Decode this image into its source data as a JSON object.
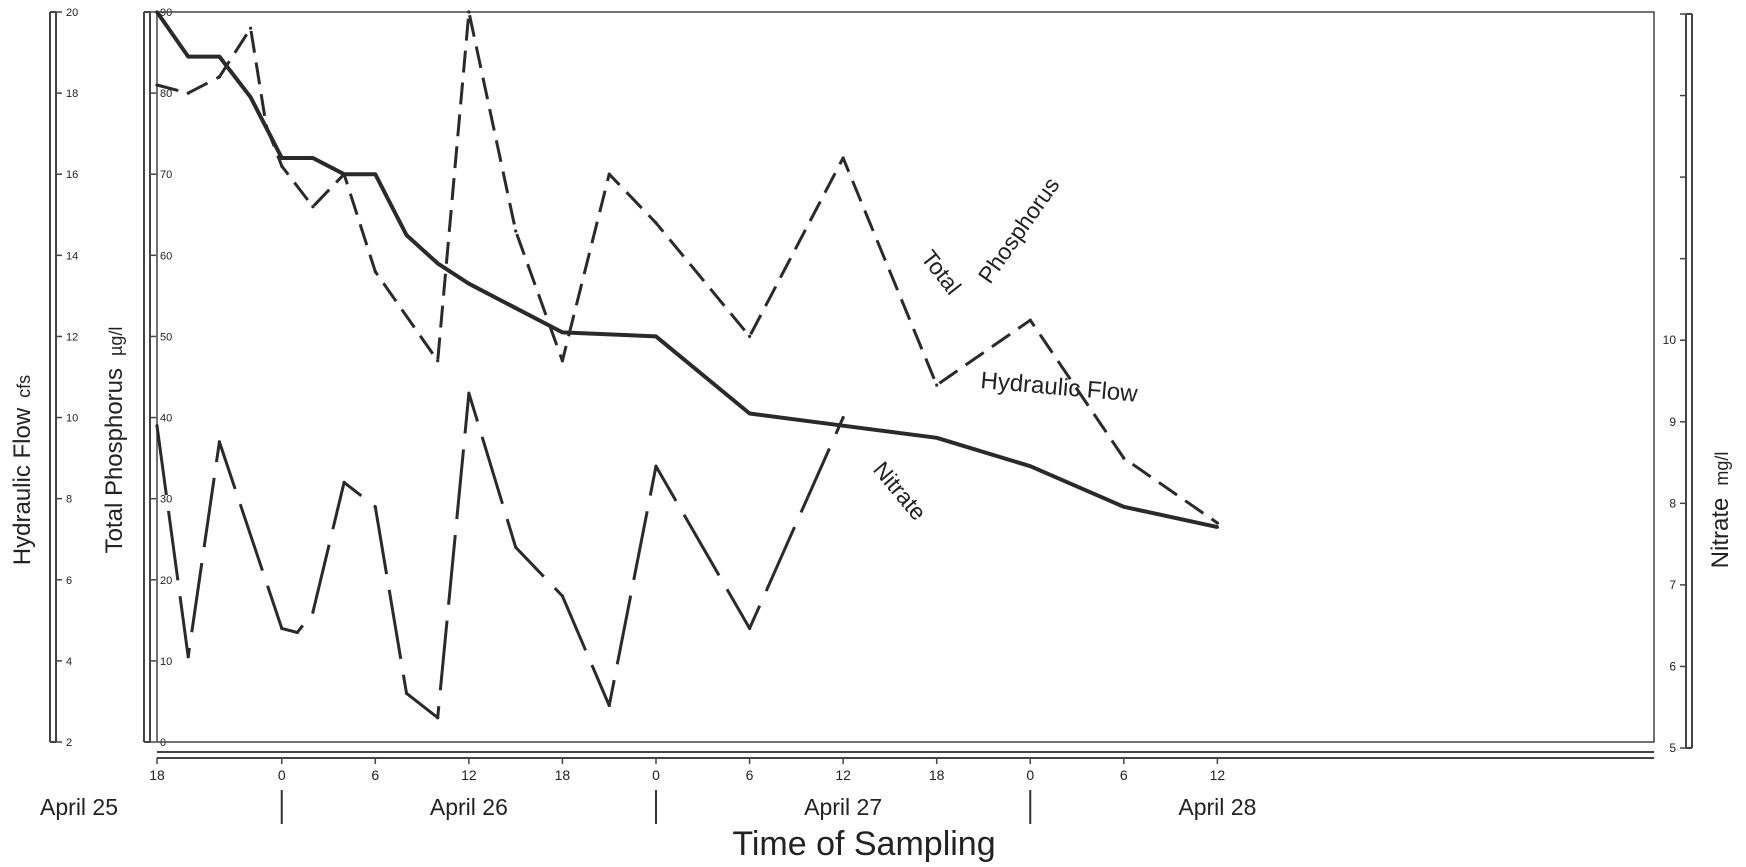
{
  "chart_data": {
    "type": "line",
    "title": "",
    "xlabel": "Time of Sampling",
    "x_unit": "hours since April 25, 00:00",
    "x_range": [
      -8,
      88
    ],
    "x_ticks": [
      {
        "x": -8,
        "label": "18"
      },
      {
        "x": 0,
        "label": "0"
      },
      {
        "x": 6,
        "label": "6"
      },
      {
        "x": 12,
        "label": "12"
      },
      {
        "x": 18,
        "label": "18"
      },
      {
        "x": 24,
        "label": "0"
      },
      {
        "x": 30,
        "label": "6"
      },
      {
        "x": 36,
        "label": "12"
      },
      {
        "x": 42,
        "label": "18"
      },
      {
        "x": 48,
        "label": "0"
      },
      {
        "x": 54,
        "label": "6"
      },
      {
        "x": 60,
        "label": "12"
      }
    ],
    "date_labels": [
      {
        "x": -13,
        "label": "April 25"
      },
      {
        "x": 12,
        "label": "April 26"
      },
      {
        "x": 36,
        "label": "April 27"
      },
      {
        "x": 60,
        "label": "April 28"
      }
    ],
    "day_dividers": [
      0,
      24,
      48
    ],
    "axes": {
      "flow": {
        "label": "Hydraulic Flow",
        "unit": "cfs",
        "range": [
          2,
          20
        ],
        "ticks": [
          {
            "v": 2,
            "label": "2"
          },
          {
            "v": 4,
            "label": "4"
          },
          {
            "v": 6,
            "label": "6"
          },
          {
            "v": 8,
            "label": "8"
          },
          {
            "v": 10,
            "label": "10"
          },
          {
            "v": 12,
            "label": "12"
          },
          {
            "v": 14,
            "label": "14"
          },
          {
            "v": 16,
            "label": "16"
          },
          {
            "v": 18,
            "label": "18"
          },
          {
            "v": 20,
            "label": "20"
          }
        ]
      },
      "phosphorus": {
        "label": "Total Phosphorus",
        "unit": "µg/l",
        "range": [
          0,
          90
        ],
        "ticks": [
          {
            "v": 0,
            "label": "0"
          },
          {
            "v": 10,
            "label": "10"
          },
          {
            "v": 20,
            "label": "20"
          },
          {
            "v": 30,
            "label": "30"
          },
          {
            "v": 40,
            "label": "40"
          },
          {
            "v": 50,
            "label": "50"
          },
          {
            "v": 60,
            "label": "60"
          },
          {
            "v": 70,
            "label": "70"
          },
          {
            "v": 80,
            "label": "80"
          },
          {
            "v": 90,
            "label": "90"
          }
        ]
      },
      "nitrate": {
        "label": "Nitrate",
        "unit": "mg/l",
        "range": [
          5,
          14
        ],
        "ticks": [
          {
            "v": 5,
            "label": "5"
          },
          {
            "v": 6,
            "label": "6"
          },
          {
            "v": 7,
            "label": "7"
          },
          {
            "v": 8,
            "label": "8"
          },
          {
            "v": 9,
            "label": "9"
          },
          {
            "v": 10,
            "label": "10"
          },
          {
            "v": 11,
            "label": ""
          },
          {
            "v": 12,
            "label": ""
          },
          {
            "v": 13,
            "label": ""
          },
          {
            "v": 14,
            "label": ""
          }
        ]
      }
    },
    "series": [
      {
        "name": "Hydraulic Flow",
        "axis": "flow",
        "style": "solid",
        "points": [
          [
            -8,
            20.0
          ],
          [
            -6,
            18.9
          ],
          [
            -4,
            18.9
          ],
          [
            -2,
            17.9
          ],
          [
            0,
            16.4
          ],
          [
            2,
            16.4
          ],
          [
            4,
            16.0
          ],
          [
            6,
            16.0
          ],
          [
            8,
            14.5
          ],
          [
            10,
            13.8
          ],
          [
            12,
            13.3
          ],
          [
            18,
            12.1
          ],
          [
            24,
            12.0
          ],
          [
            30,
            10.1
          ],
          [
            36,
            9.8
          ],
          [
            42,
            9.5
          ],
          [
            48,
            8.8
          ],
          [
            54,
            7.8
          ],
          [
            60,
            7.3
          ]
        ]
      },
      {
        "name": "Total Phosphorus",
        "axis": "phosphorus",
        "style": "dashed",
        "points": [
          [
            -8,
            81
          ],
          [
            -6,
            80
          ],
          [
            -4,
            82
          ],
          [
            -2,
            88
          ],
          [
            -1,
            76
          ],
          [
            0,
            71
          ],
          [
            2,
            66
          ],
          [
            4,
            70
          ],
          [
            6,
            58
          ],
          [
            10,
            47
          ],
          [
            12,
            90
          ],
          [
            15,
            63
          ],
          [
            18,
            47
          ],
          [
            21,
            70
          ],
          [
            24,
            64
          ],
          [
            30,
            50
          ],
          [
            36,
            72
          ],
          [
            42,
            44
          ],
          [
            48,
            52
          ],
          [
            54,
            35
          ],
          [
            60,
            27
          ]
        ]
      },
      {
        "name": "Nitrate",
        "axis": "nitrate",
        "style": "solid-broken",
        "points": [
          [
            -8,
            8.9
          ],
          [
            -6,
            6.05
          ],
          [
            -4,
            8.7
          ],
          [
            0,
            6.4
          ],
          [
            1,
            6.35
          ],
          [
            2,
            6.6
          ],
          [
            4,
            8.2
          ],
          [
            6,
            7.9
          ],
          [
            8,
            5.6
          ],
          [
            10,
            5.3
          ],
          [
            12,
            9.3
          ],
          [
            15,
            7.4
          ],
          [
            18,
            6.8
          ],
          [
            21,
            5.45
          ],
          [
            24,
            8.4
          ],
          [
            30,
            6.4
          ],
          [
            36,
            9.0
          ]
        ]
      }
    ],
    "annotations": [
      {
        "text": "Total",
        "series": "Total Phosphorus"
      },
      {
        "text": "Phosphorus",
        "series": "Total Phosphorus"
      },
      {
        "text": "Hydraulic Flow",
        "series": "Hydraulic Flow"
      },
      {
        "text": "Nitrate",
        "series": "Nitrate"
      }
    ],
    "grid": false,
    "legend": "none",
    "colors": {
      "ink": "#2a2a2a",
      "axis": "#444444"
    }
  }
}
